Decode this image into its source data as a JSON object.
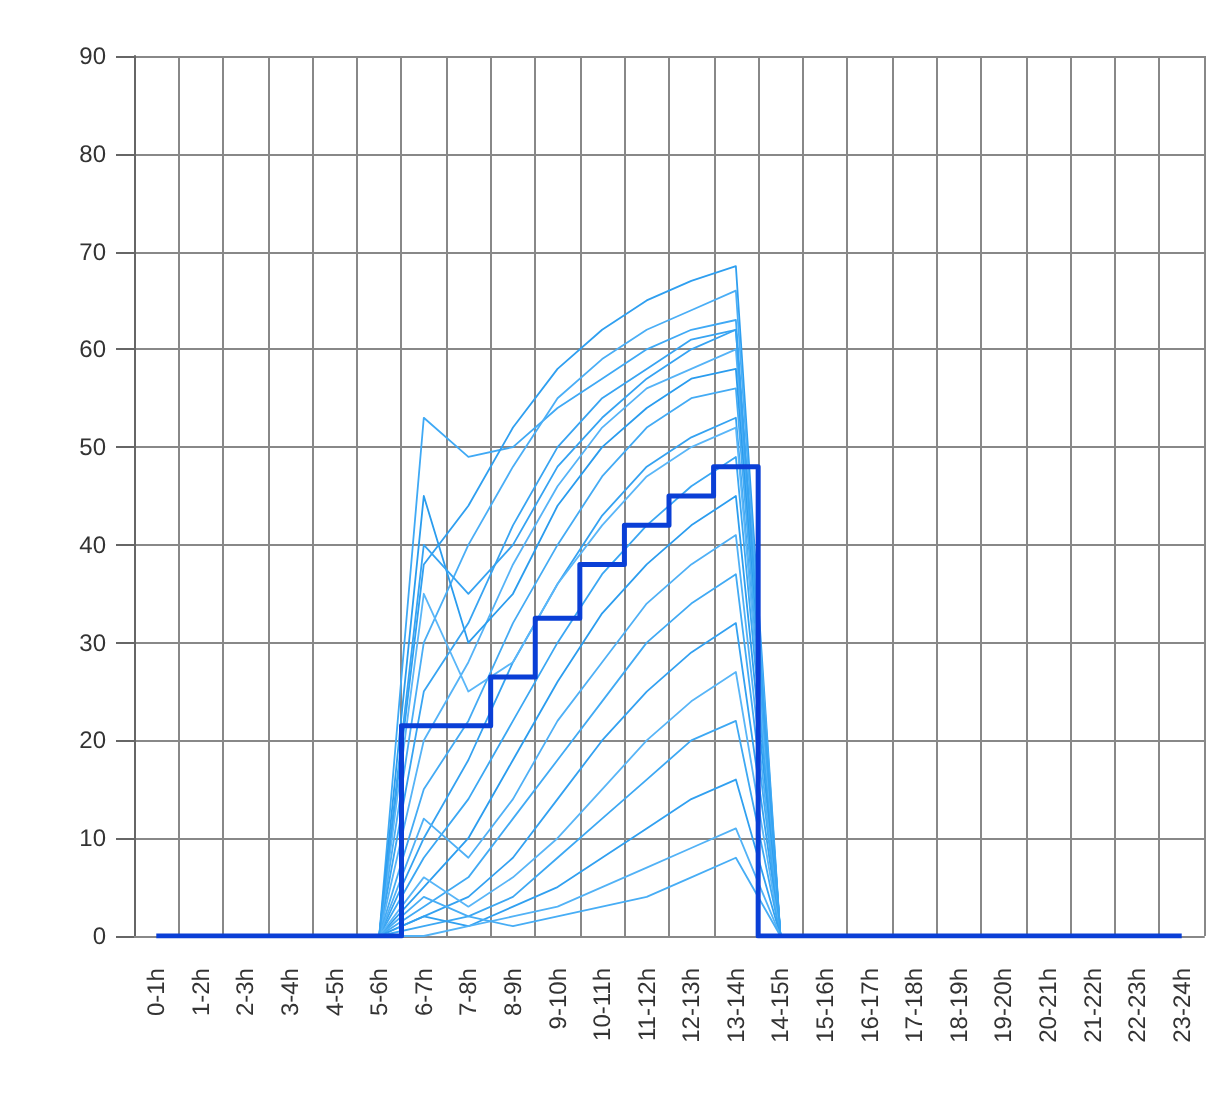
{
  "chart_data": {
    "type": "line",
    "categories": [
      "0-1h",
      "1-2h",
      "2-3h",
      "3-4h",
      "4-5h",
      "5-6h",
      "6-7h",
      "7-8h",
      "8-9h",
      "9-10h",
      "10-11h",
      "11-12h",
      "12-13h",
      "13-14h",
      "14-15h",
      "15-16h",
      "16-17h",
      "17-18h",
      "18-19h",
      "19-20h",
      "20-21h",
      "21-22h",
      "22-23h",
      "23-24h"
    ],
    "ylim": [
      0,
      90
    ],
    "yticks": [
      0,
      10,
      20,
      30,
      40,
      50,
      60,
      70,
      80,
      90
    ],
    "grid": true,
    "marker": "none",
    "line_style": "solid",
    "series": [
      {
        "type": "step",
        "color": "#0a3fd6",
        "values": [
          0,
          0,
          0,
          0,
          0,
          0,
          21.5,
          21.5,
          26.5,
          32.5,
          38,
          42,
          45,
          48,
          0,
          0,
          0,
          0,
          0,
          0,
          0,
          0,
          0,
          0
        ]
      },
      {
        "color": "#3fa9f5",
        "values": [
          null,
          null,
          null,
          null,
          null,
          0,
          53,
          49,
          50,
          54,
          57,
          60,
          62,
          63,
          0,
          null,
          null,
          null,
          null,
          null,
          null,
          null,
          null,
          null
        ]
      },
      {
        "color": "#2f9ff0",
        "values": [
          null,
          null,
          null,
          null,
          null,
          0,
          38,
          44,
          52,
          58,
          62,
          65,
          67,
          68.5,
          0,
          null,
          null,
          null,
          null,
          null,
          null,
          null,
          null,
          null
        ]
      },
      {
        "color": "#4aaef6",
        "values": [
          null,
          null,
          null,
          null,
          null,
          0,
          30,
          40,
          48,
          55,
          59,
          62,
          64,
          66,
          0,
          null,
          null,
          null,
          null,
          null,
          null,
          null,
          null,
          null
        ]
      },
      {
        "color": "#38a4f2",
        "values": [
          null,
          null,
          null,
          null,
          null,
          0,
          25,
          32,
          42,
          50,
          55,
          58,
          61,
          62,
          0,
          null,
          null,
          null,
          null,
          null,
          null,
          null,
          null,
          null
        ]
      },
      {
        "color": "#55b3f7",
        "values": [
          null,
          null,
          null,
          null,
          null,
          0,
          20,
          28,
          38,
          46,
          52,
          56,
          58,
          60,
          0,
          null,
          null,
          null,
          null,
          null,
          null,
          null,
          null,
          null
        ]
      },
      {
        "color": "#2a9cee",
        "values": [
          null,
          null,
          null,
          null,
          null,
          0,
          45,
          30,
          35,
          44,
          50,
          54,
          57,
          58,
          0,
          null,
          null,
          null,
          null,
          null,
          null,
          null,
          null,
          null
        ]
      },
      {
        "color": "#44abf4",
        "values": [
          null,
          null,
          null,
          null,
          null,
          0,
          15,
          22,
          32,
          40,
          47,
          52,
          55,
          56,
          0,
          null,
          null,
          null,
          null,
          null,
          null,
          null,
          null,
          null
        ]
      },
      {
        "color": "#35a2f1",
        "values": [
          null,
          null,
          null,
          null,
          null,
          0,
          10,
          18,
          28,
          36,
          43,
          48,
          51,
          53,
          0,
          null,
          null,
          null,
          null,
          null,
          null,
          null,
          null,
          null
        ]
      },
      {
        "color": "#5ab6f8",
        "values": [
          null,
          null,
          null,
          null,
          null,
          0,
          35,
          25,
          28,
          36,
          42,
          47,
          50,
          52,
          0,
          null,
          null,
          null,
          null,
          null,
          null,
          null,
          null,
          null
        ]
      },
      {
        "color": "#3ba7f3",
        "values": [
          null,
          null,
          null,
          null,
          null,
          0,
          8,
          14,
          22,
          30,
          37,
          42,
          46,
          49,
          0,
          null,
          null,
          null,
          null,
          null,
          null,
          null,
          null,
          null
        ]
      },
      {
        "color": "#2c9def",
        "values": [
          null,
          null,
          null,
          null,
          null,
          0,
          5,
          10,
          18,
          26,
          33,
          38,
          42,
          45,
          0,
          null,
          null,
          null,
          null,
          null,
          null,
          null,
          null,
          null
        ]
      },
      {
        "color": "#4fb0f6",
        "values": [
          null,
          null,
          null,
          null,
          null,
          0,
          12,
          8,
          14,
          22,
          28,
          34,
          38,
          41,
          0,
          null,
          null,
          null,
          null,
          null,
          null,
          null,
          null,
          null
        ]
      },
      {
        "color": "#41aaf4",
        "values": [
          null,
          null,
          null,
          null,
          null,
          0,
          3,
          6,
          12,
          18,
          24,
          30,
          34,
          37,
          0,
          null,
          null,
          null,
          null,
          null,
          null,
          null,
          null,
          null
        ]
      },
      {
        "color": "#33a1f1",
        "values": [
          null,
          null,
          null,
          null,
          null,
          0,
          2,
          4,
          8,
          14,
          20,
          25,
          29,
          32,
          0,
          null,
          null,
          null,
          null,
          null,
          null,
          null,
          null,
          null
        ]
      },
      {
        "color": "#58b5f7",
        "values": [
          null,
          null,
          null,
          null,
          null,
          0,
          6,
          3,
          6,
          10,
          15,
          20,
          24,
          27,
          0,
          null,
          null,
          null,
          null,
          null,
          null,
          null,
          null,
          null
        ]
      },
      {
        "color": "#3da8f3",
        "values": [
          null,
          null,
          null,
          null,
          null,
          0,
          1,
          2,
          4,
          8,
          12,
          16,
          20,
          22,
          0,
          null,
          null,
          null,
          null,
          null,
          null,
          null,
          null,
          null
        ]
      },
      {
        "color": "#31a0f0",
        "values": [
          null,
          null,
          null,
          null,
          null,
          0,
          2,
          1,
          3,
          5,
          8,
          11,
          14,
          16,
          0,
          null,
          null,
          null,
          null,
          null,
          null,
          null,
          null,
          null
        ]
      },
      {
        "color": "#52b2f6",
        "values": [
          null,
          null,
          null,
          null,
          null,
          0,
          0,
          1,
          2,
          3,
          5,
          7,
          9,
          11,
          0,
          null,
          null,
          null,
          null,
          null,
          null,
          null,
          null,
          null
        ]
      },
      {
        "color": "#47adf5",
        "values": [
          null,
          null,
          null,
          null,
          null,
          0,
          4,
          2,
          1,
          2,
          3,
          4,
          6,
          8,
          0,
          null,
          null,
          null,
          null,
          null,
          null,
          null,
          null,
          null
        ]
      },
      {
        "color": "#36a3f2",
        "values": [
          null,
          null,
          null,
          null,
          null,
          0,
          40,
          35,
          40,
          48,
          53,
          57,
          60,
          62,
          0,
          null,
          null,
          null,
          null,
          null,
          null,
          null,
          null,
          null
        ]
      }
    ]
  }
}
